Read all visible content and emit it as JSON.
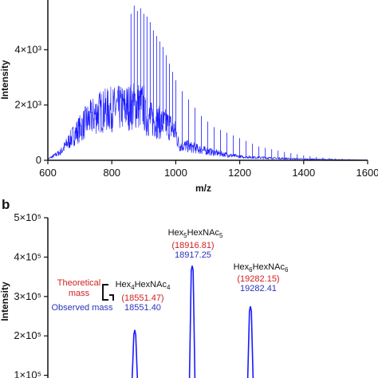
{
  "colors": {
    "spectrum": "#1a1aff",
    "theoretical": "#d11f1f",
    "observed": "#2b35b8",
    "axis": "#111111"
  },
  "chart_data": [
    {
      "type": "line",
      "panel": "a",
      "title": "",
      "xlabel": "m/z",
      "ylabel": "Intensity",
      "xlim": [
        600,
        1600
      ],
      "ylim": [
        0,
        5800
      ],
      "x_ticks": [
        "600",
        "800",
        "1000",
        "1200",
        "1400",
        "1600"
      ],
      "x_tick_values": [
        600,
        800,
        1000,
        1200,
        1400,
        1600
      ],
      "y_ticks": [
        "0",
        "2×10³",
        "4×10³"
      ],
      "y_tick_values": [
        0,
        2000,
        4000
      ],
      "envelope": {
        "x": [
          600,
          640,
          680,
          720,
          760,
          800,
          840,
          880,
          900,
          905,
          940,
          980,
          1000,
          1010,
          1040,
          1080,
          1120,
          1160,
          1200,
          1300,
          1400,
          1500,
          1600
        ],
        "y": [
          40,
          300,
          900,
          1400,
          1750,
          1850,
          1900,
          2000,
          1950,
          1550,
          1400,
          1250,
          1000,
          550,
          500,
          380,
          280,
          200,
          130,
          80,
          45,
          25,
          10
        ]
      },
      "peaks": {
        "x": [
          860,
          870,
          880,
          890,
          900,
          910,
          920,
          930,
          940,
          950,
          960,
          970,
          980,
          990,
          1000,
          1020,
          1040,
          1060,
          1080,
          1100,
          1120,
          1140,
          1160,
          1180,
          1200,
          1220,
          1240,
          1260,
          1280,
          1300,
          1320,
          1340,
          1360,
          1380,
          1400,
          1420,
          1440,
          1460,
          1480,
          1500,
          1520,
          1540
        ],
        "y": [
          5300,
          5600,
          5400,
          5500,
          5300,
          5200,
          5000,
          4700,
          4500,
          4300,
          4100,
          3800,
          3500,
          3200,
          2900,
          2500,
          2200,
          1900,
          1600,
          1400,
          1200,
          1100,
          1000,
          900,
          800,
          700,
          600,
          500,
          450,
          400,
          350,
          300,
          260,
          220,
          180,
          150,
          120,
          100,
          80,
          60,
          50,
          40
        ]
      }
    },
    {
      "type": "line",
      "panel": "b",
      "title": "",
      "xlabel": "",
      "ylabel": "Intensity",
      "ylim": [
        0,
        500000
      ],
      "y_ticks": [
        "0",
        "1×10⁵",
        "2×10⁵",
        "3×10⁵",
        "4×10⁵",
        "5×10⁵"
      ],
      "y_tick_values": [
        0,
        100000,
        200000,
        300000,
        400000,
        500000
      ],
      "x": [
        18551.4,
        18917.25,
        19282.41
      ],
      "values": [
        215000,
        378000,
        275000
      ],
      "annotations": [
        {
          "glycan_main": "Hex",
          "glycan_sub1": "4",
          "glycan_mid": "HexNAc",
          "glycan_sub2": "4",
          "theoretical": "(18551.47)",
          "observed": "18551.40"
        },
        {
          "glycan_main": "Hex",
          "glycan_sub1": "5",
          "glycan_mid": "HexNAc",
          "glycan_sub2": "5",
          "theoretical": "(18916.81)",
          "observed": "18917.25"
        },
        {
          "glycan_main": "Hex",
          "glycan_sub1": "6",
          "glycan_mid": "HexNAc",
          "glycan_sub2": "6",
          "theoretical": "(19282.15)",
          "observed": "19282.41"
        }
      ],
      "legend": {
        "theoretical_line1": "Theoretical",
        "theoretical_line2": "mass",
        "observed": "Observed mass"
      }
    }
  ],
  "panel_labels": {
    "b": "b"
  }
}
